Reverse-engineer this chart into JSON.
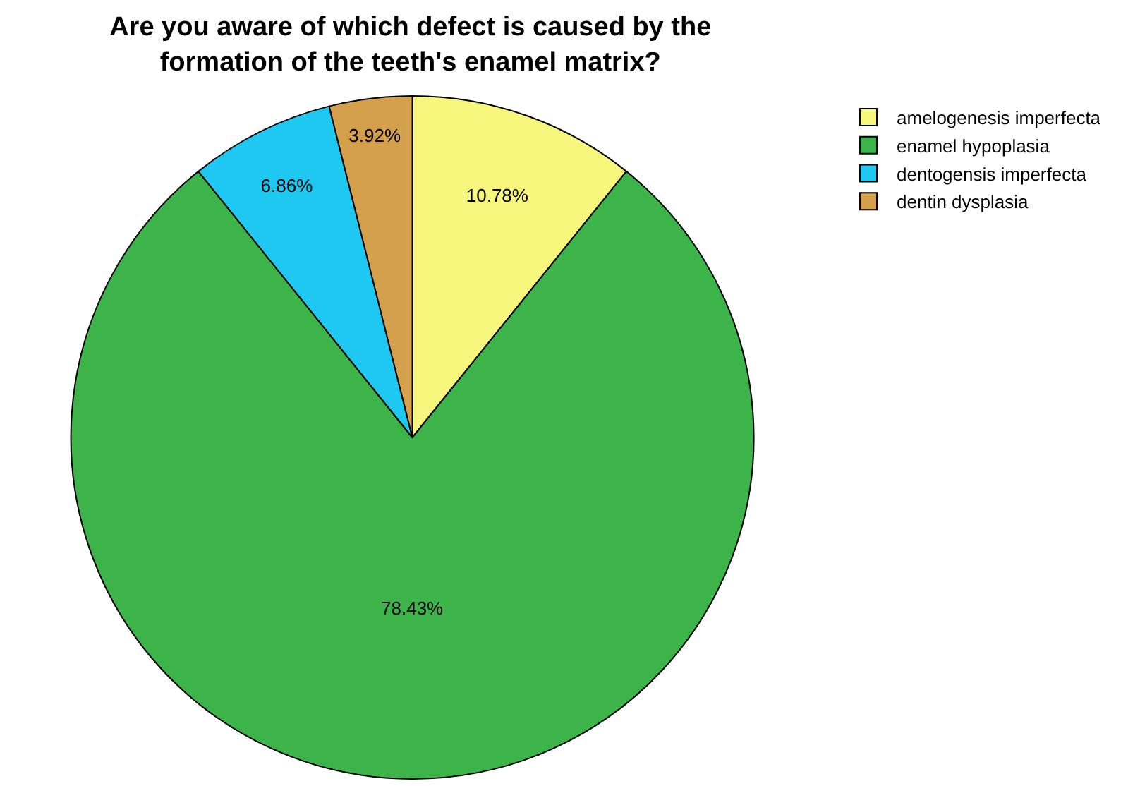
{
  "chart_data": {
    "type": "pie",
    "title": "Are you aware of which defect is caused by the formation of the teeth's enamel matrix?",
    "categories": [
      "amelogenesis imperfecta",
      "enamel hypoplasia",
      "dentogensis imperfecta",
      "dentin dysplasia"
    ],
    "values": [
      10.78,
      78.43,
      6.86,
      3.92
    ],
    "value_labels": [
      "10.78%",
      "78.43%",
      "6.86%",
      "3.92%"
    ],
    "colors": [
      "#f7f77e",
      "#3cb44a",
      "#1ec8f0",
      "#d4a04c"
    ],
    "legend": "top right"
  }
}
